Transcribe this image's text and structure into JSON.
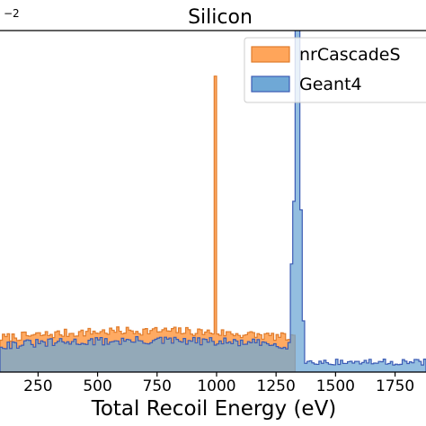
{
  "chart_data": {
    "type": "histogram",
    "title": "Silicon",
    "xlabel": "Total Recoil Energy (eV)",
    "ylabel": "",
    "offset_text": "−2",
    "xlim": [
      90,
      1880
    ],
    "ylim": [
      0,
      1.2
    ],
    "xticks": [
      250,
      500,
      750,
      1000,
      1250,
      1500,
      1750
    ],
    "legend_position": "upper right",
    "series": [
      {
        "name": "nrCascadeS",
        "color": "#ffa55a",
        "edge_color": "#e07c2c",
        "bin_width": 10,
        "x_start": 90,
        "x_end": 1330,
        "baseline_start": 0.12,
        "baseline_end": 0.145,
        "spikes": [
          {
            "x": 990,
            "value": 1.04
          }
        ],
        "truncated_label": true
      },
      {
        "name": "Geant4",
        "color": "#6fa8d6",
        "edge_color": "#3b5bb5",
        "bin_width": 10,
        "x_start": 90,
        "x_end": 1880,
        "baseline_start": 0.095,
        "baseline_end": 0.11,
        "spikes": [
          {
            "x": 1310,
            "value": 0.38
          },
          {
            "x": 1320,
            "value": 0.6
          },
          {
            "x": 1330,
            "value": 1.3
          },
          {
            "x": 1340,
            "value": 1.3
          },
          {
            "x": 1350,
            "value": 0.57
          },
          {
            "x": 1360,
            "value": 0.18
          }
        ],
        "tail_value": 0.035
      }
    ]
  }
}
